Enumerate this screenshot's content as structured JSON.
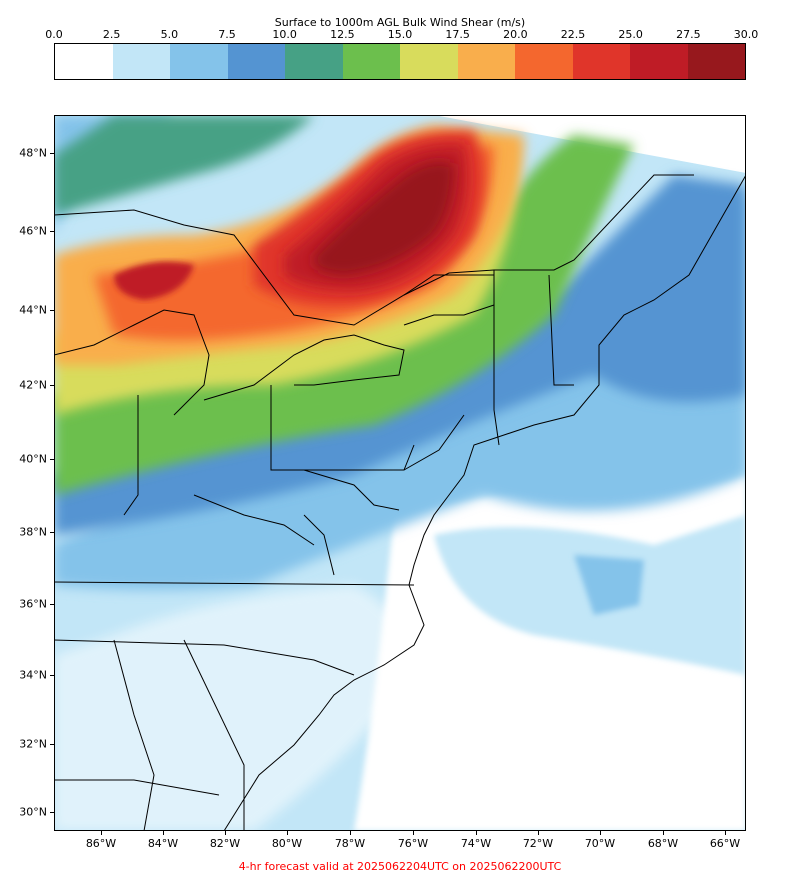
{
  "colorbar": {
    "title": "Surface to 1000m AGL Bulk Wind Shear (m/s)",
    "ticks": [
      "0.0",
      "2.5",
      "5.0",
      "7.5",
      "10.0",
      "12.5",
      "15.0",
      "17.5",
      "20.0",
      "22.5",
      "25.0",
      "27.5",
      "30.0"
    ],
    "colors": [
      "#ffffff",
      "#c2e6f7",
      "#84c3ea",
      "#5494d2",
      "#46a185",
      "#6cbf4d",
      "#d8dc5c",
      "#f9ae4c",
      "#f4672e",
      "#e0352a",
      "#bf1c26",
      "#97181d"
    ]
  },
  "map": {
    "lat_labels": [
      "48°N",
      "46°N",
      "44°N",
      "42°N",
      "40°N",
      "38°N",
      "36°N",
      "34°N",
      "32°N",
      "30°N"
    ],
    "lon_labels": [
      "86°W",
      "84°W",
      "82°W",
      "80°W",
      "78°W",
      "76°W",
      "74°W",
      "72°W",
      "70°W",
      "68°W",
      "66°W"
    ],
    "field_levels": {
      "peak_shear_region": "central Ontario / eastern Great Lakes",
      "colormap_max": "30.0"
    }
  },
  "footer": "4-hr forecast valid at 2025062204UTC on 2025062200UTC"
}
